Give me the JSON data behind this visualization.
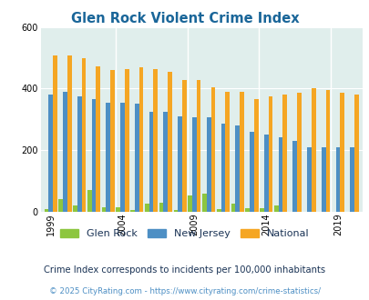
{
  "title": "Glen Rock Violent Crime Index",
  "title_color": "#1a6699",
  "years": [
    1999,
    2000,
    2001,
    2002,
    2003,
    2004,
    2005,
    2006,
    2007,
    2008,
    2009,
    2010,
    2011,
    2012,
    2013,
    2014,
    2015,
    2016,
    2017,
    2018,
    2019,
    2020
  ],
  "glen_rock": [
    8,
    40,
    20,
    70,
    15,
    15,
    5,
    25,
    30,
    5,
    52,
    58,
    8,
    25,
    10,
    10,
    20,
    0,
    0,
    0,
    0,
    0
  ],
  "new_jersey": [
    380,
    390,
    375,
    365,
    355,
    355,
    350,
    325,
    325,
    310,
    305,
    305,
    285,
    280,
    260,
    250,
    240,
    230,
    210,
    210,
    210,
    210
  ],
  "national": [
    507,
    507,
    500,
    473,
    460,
    463,
    470,
    463,
    455,
    428,
    428,
    405,
    390,
    390,
    365,
    375,
    380,
    385,
    400,
    395,
    385,
    380
  ],
  "glen_rock_color": "#8dc63f",
  "nj_color": "#4d8fc4",
  "national_color": "#f5a623",
  "plot_bg": "#e0eeec",
  "ylim": [
    0,
    600
  ],
  "yticks": [
    0,
    200,
    400,
    600
  ],
  "xlabel_years": [
    1999,
    2004,
    2009,
    2014,
    2019
  ],
  "note": "Crime Index corresponds to incidents per 100,000 inhabitants",
  "copyright": "© 2025 CityRating.com - https://www.cityrating.com/crime-statistics/",
  "note_color": "#1a3355",
  "copyright_color": "#4d8fc4"
}
